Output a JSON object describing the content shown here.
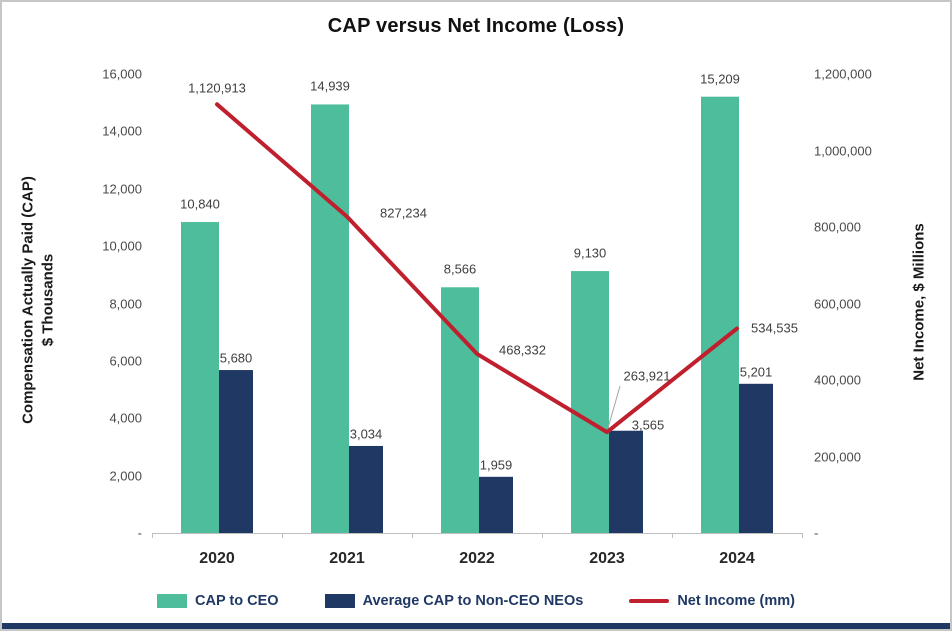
{
  "title": "CAP versus Net Income (Loss)",
  "left_axis": {
    "title_line1": "Compensation Actually Paid (CAP)",
    "title_line2": "$ Thousands",
    "ticks": [
      {
        "value": 0,
        "label": "-"
      },
      {
        "value": 2000,
        "label": "2,000"
      },
      {
        "value": 4000,
        "label": "4,000"
      },
      {
        "value": 6000,
        "label": "6,000"
      },
      {
        "value": 8000,
        "label": "8,000"
      },
      {
        "value": 10000,
        "label": "10,000"
      },
      {
        "value": 12000,
        "label": "12,000"
      },
      {
        "value": 14000,
        "label": "14,000"
      },
      {
        "value": 16000,
        "label": "16,000"
      }
    ]
  },
  "right_axis": {
    "title": "Net Income, $ Millions",
    "ticks": [
      {
        "value": 0,
        "label": "-"
      },
      {
        "value": 200000,
        "label": "200,000"
      },
      {
        "value": 400000,
        "label": "400,000"
      },
      {
        "value": 600000,
        "label": "600,000"
      },
      {
        "value": 800000,
        "label": "800,000"
      },
      {
        "value": 1000000,
        "label": "1,000,000"
      },
      {
        "value": 1200000,
        "label": "1,200,000"
      }
    ]
  },
  "chart_data": {
    "type": "bar",
    "subtype": "bar+line combo, dual axis",
    "title": "CAP versus Net Income (Loss)",
    "categories": [
      "2020",
      "2021",
      "2022",
      "2023",
      "2024"
    ],
    "left_ylim": [
      0,
      16000
    ],
    "right_ylim": [
      0,
      1200000
    ],
    "grid": false,
    "legend_position": "bottom",
    "series": [
      {
        "name": "CAP to CEO",
        "type": "bar",
        "axis": "left",
        "color": "#4DBD9B",
        "values": [
          10840,
          14939,
          8566,
          9130,
          15209
        ],
        "labels": [
          "10,840",
          "14,939",
          "8,566",
          "9,130",
          "15,209"
        ]
      },
      {
        "name": "Average CAP to Non-CEO NEOs",
        "type": "bar",
        "axis": "left",
        "color": "#1F3864",
        "values": [
          5680,
          3034,
          1959,
          3565,
          5201
        ],
        "labels": [
          "5,680",
          "3,034",
          "1,959",
          "3,565",
          "5,201"
        ]
      },
      {
        "name": "Net Income (mm)",
        "type": "line",
        "axis": "right",
        "color": "#C0202E",
        "values": [
          1120913,
          827234,
          468332,
          263921,
          534535
        ],
        "labels": [
          "1,120,913",
          "827,234",
          "468,332",
          "263,921",
          "534,535"
        ]
      }
    ]
  },
  "legend": [
    {
      "label": "CAP to CEO",
      "color": "#4DBD9B",
      "type": "bar"
    },
    {
      "label": "Average CAP to Non-CEO NEOs",
      "color": "#1F3864",
      "type": "bar"
    },
    {
      "label": "Net Income (mm)",
      "color": "#C0202E",
      "type": "line"
    }
  ],
  "colors": {
    "axis_line": "#BFBFBF",
    "leader_line": "#A6A6A6",
    "bottom_strip": "#1F3864",
    "frame_border": "#C6C6C6"
  }
}
